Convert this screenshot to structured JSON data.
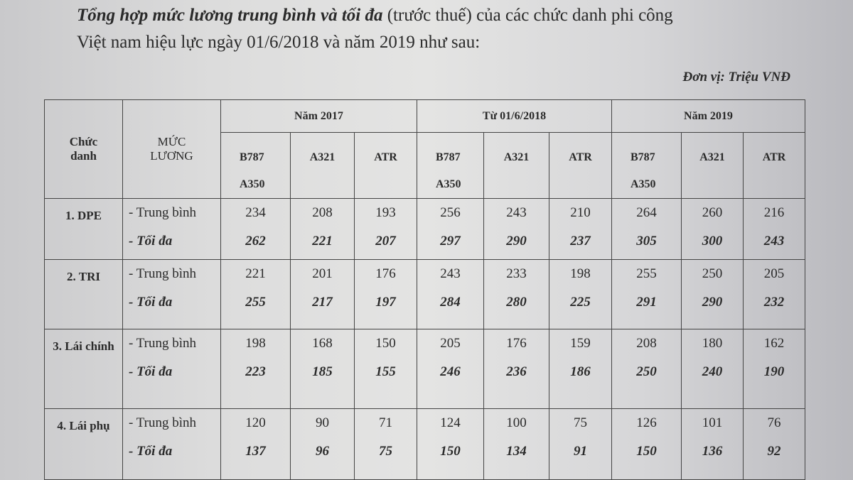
{
  "heading": {
    "line1_italic": "Tổng hợp mức lương trung bình và tối đa",
    "line1_rest": " (trước thuế) của các chức danh phi công",
    "line2": "Việt nam hiệu lực ngày 01/6/2018  và năm 2019 như sau:",
    "unit": "Đơn vị: Triệu VNĐ"
  },
  "table": {
    "col_title": "Chức danh",
    "col_level": "MỨC LƯƠNG",
    "periods": [
      "Năm 2017",
      "Từ 01/6/2018",
      "Năm 2019"
    ],
    "aircraft": [
      "B787 A350",
      "A321",
      "ATR"
    ],
    "level_labels": [
      "- Trung bình",
      "- Tối đa"
    ],
    "rows": [
      {
        "title": "1. DPE",
        "avg": [
          234,
          208,
          193,
          256,
          243,
          210,
          264,
          260,
          216
        ],
        "max": [
          262,
          221,
          207,
          297,
          290,
          237,
          305,
          300,
          243
        ]
      },
      {
        "title": "2. TRI",
        "avg": [
          221,
          201,
          176,
          243,
          233,
          198,
          255,
          250,
          205
        ],
        "max": [
          255,
          217,
          197,
          284,
          280,
          225,
          291,
          290,
          232
        ]
      },
      {
        "title": "3. Lái chính",
        "avg": [
          198,
          168,
          150,
          205,
          176,
          159,
          208,
          180,
          162
        ],
        "max": [
          223,
          185,
          155,
          246,
          236,
          186,
          250,
          240,
          190
        ]
      },
      {
        "title": "4. Lái phụ",
        "avg": [
          120,
          90,
          71,
          124,
          100,
          75,
          126,
          101,
          76
        ],
        "max": [
          137,
          96,
          75,
          150,
          134,
          91,
          150,
          136,
          92
        ]
      }
    ]
  }
}
